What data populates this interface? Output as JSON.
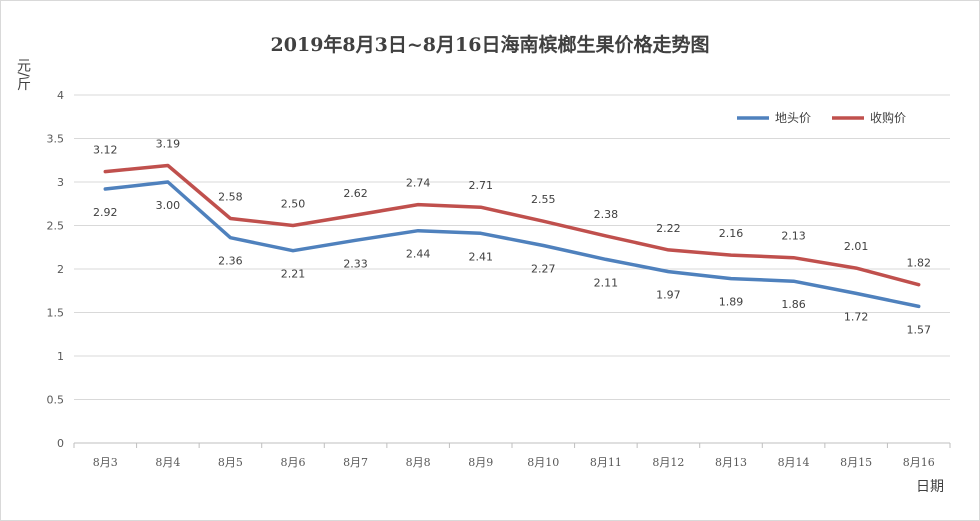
{
  "chart_data": {
    "type": "line",
    "title": "2019年8月3日~8月16日海南槟榔生果价格走势图",
    "xlabel": "日期",
    "ylabel": "元/斤",
    "ylim": [
      0,
      4
    ],
    "yticks": [
      "0",
      "0.5",
      "1",
      "1.5",
      "2",
      "2.5",
      "3",
      "3.5",
      "4"
    ],
    "grid": true,
    "legend_position": "top-right",
    "categories": [
      "8月3",
      "8月4",
      "8月5",
      "8月6",
      "8月7",
      "8月8",
      "8月9",
      "8月10",
      "8月11",
      "8月12",
      "8月13",
      "8月14",
      "8月15",
      "8月16"
    ],
    "series": [
      {
        "name": "地头价",
        "color": "#4f81bd",
        "values": [
          2.92,
          3.0,
          2.36,
          2.21,
          2.33,
          2.44,
          2.41,
          2.27,
          2.11,
          1.97,
          1.89,
          1.86,
          1.72,
          1.57
        ],
        "labels": [
          "2.92",
          "3.00",
          "2.36",
          "2.21",
          "2.33",
          "2.44",
          "2.41",
          "2.27",
          "2.11",
          "1.97",
          "1.89",
          "1.86",
          "1.72",
          "1.57"
        ]
      },
      {
        "name": "收购价",
        "color": "#c0504d",
        "values": [
          3.12,
          3.19,
          2.58,
          2.5,
          2.62,
          2.74,
          2.71,
          2.55,
          2.38,
          2.22,
          2.16,
          2.13,
          2.01,
          1.82
        ],
        "labels": [
          "3.12",
          "3.19",
          "2.58",
          "2.50",
          "2.62",
          "2.74",
          "2.71",
          "2.55",
          "2.38",
          "2.22",
          "2.16",
          "2.13",
          "2.01",
          "1.82"
        ]
      }
    ]
  }
}
